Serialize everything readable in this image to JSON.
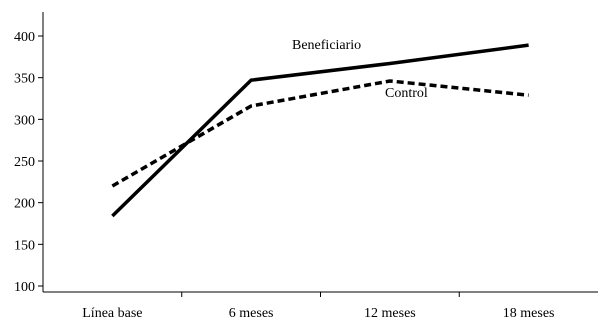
{
  "chart_data": {
    "type": "line",
    "categories": [
      "Línea base",
      "6 meses",
      "12 meses",
      "18 meses"
    ],
    "ylim": [
      100,
      400
    ],
    "yticks": [
      100,
      150,
      200,
      250,
      300,
      350,
      400
    ],
    "grid": false,
    "series": [
      {
        "name": "Beneficiario",
        "values": [
          184,
          347,
          367,
          389
        ],
        "style": "solid",
        "color": "#000000"
      },
      {
        "name": "Control",
        "values": [
          220,
          316,
          346,
          329
        ],
        "style": "dashed",
        "color": "#000000"
      }
    ]
  }
}
